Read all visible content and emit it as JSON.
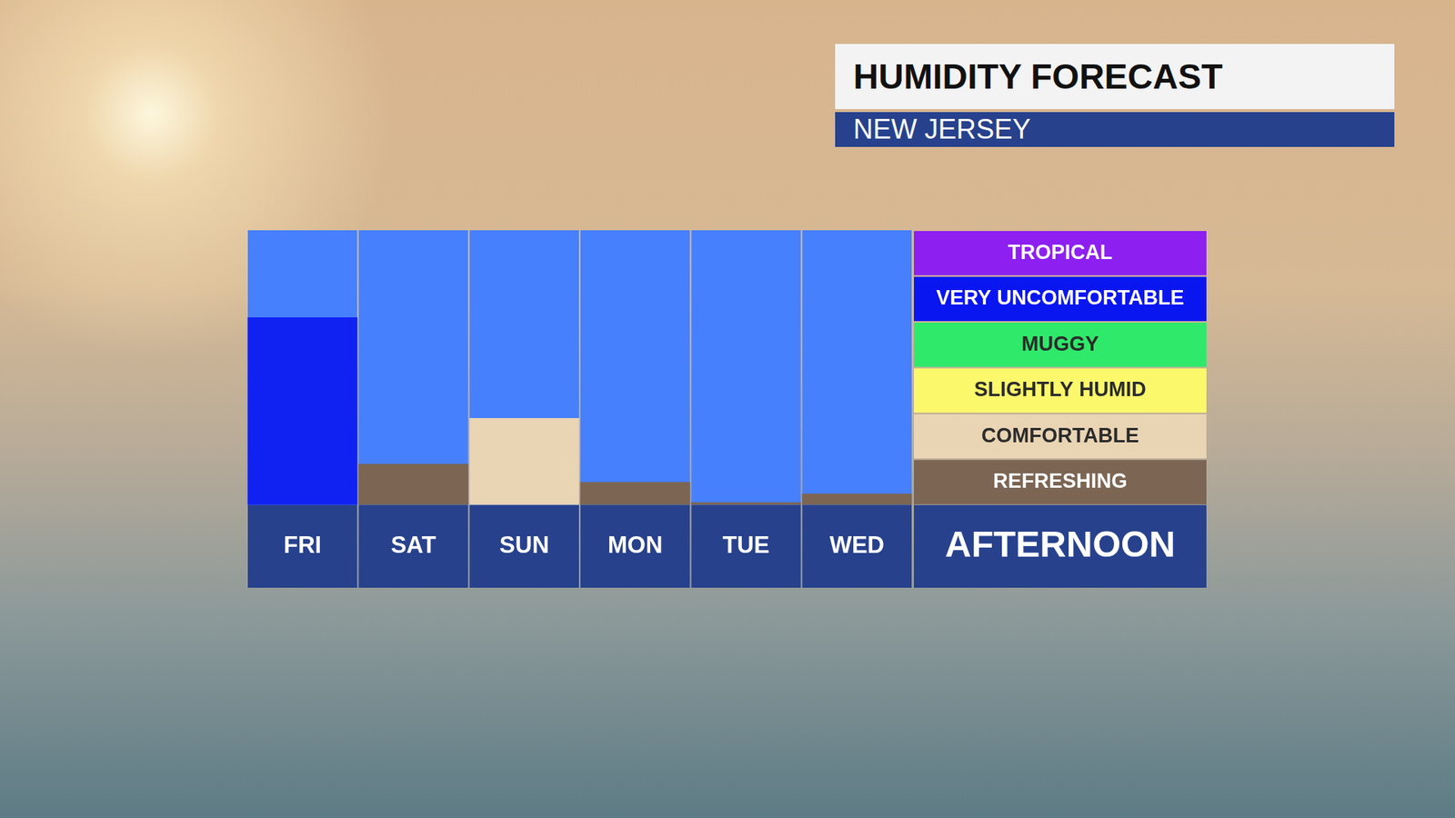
{
  "chart_data": {
    "type": "bar",
    "title": "HUMIDITY FORECAST",
    "subtitle": "NEW JERSEY",
    "annotation": "AFTERNOON",
    "categories": [
      "FRI",
      "SAT",
      "SUN",
      "MON",
      "TUE",
      "WED"
    ],
    "values": [
      4.1,
      0.9,
      1.9,
      0.5,
      0.06,
      0.25
    ],
    "colors": [
      "#1022f2",
      "#7c6553",
      "#e9d4b4",
      "#7c6553",
      "#7c6553",
      "#7c6553"
    ],
    "ylim": [
      0,
      6
    ],
    "yticks": [
      {
        "value": 0.5,
        "label": "REFRESHING"
      },
      {
        "value": 1.5,
        "label": "COMFORTABLE"
      },
      {
        "value": 2.5,
        "label": "SLIGHTLY HUMID"
      },
      {
        "value": 3.5,
        "label": "MUGGY"
      },
      {
        "value": 4.5,
        "label": "VERY UNCOMFORTABLE"
      },
      {
        "value": 5.5,
        "label": "TROPICAL"
      }
    ],
    "grid": false
  }
}
